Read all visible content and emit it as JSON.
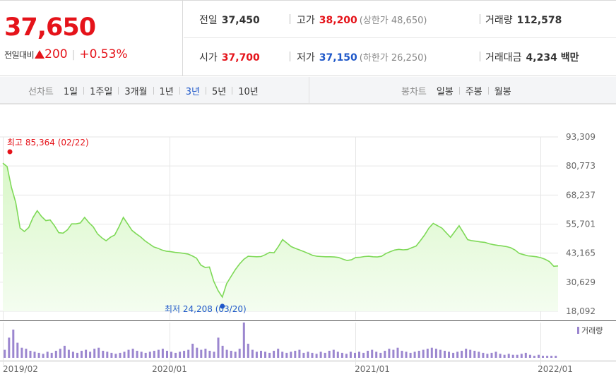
{
  "summary": {
    "price": "37,650",
    "change_label": "전일대비",
    "change_icon": "triangle-up-icon",
    "change_value": "200",
    "change_rate": "+0.53%",
    "prev_close_label": "전일",
    "prev_close": "37,450",
    "high_label": "고가",
    "high": "38,200",
    "upper_limit": "(상한가 48,650)",
    "volume_label": "거래량",
    "volume": "112,578",
    "open_label": "시가",
    "open": "37,700",
    "low_label": "저가",
    "low": "37,150",
    "lower_limit": "(하한가 26,250)",
    "amount_label": "거래대금",
    "amount": "4,234 백만"
  },
  "toolbar": {
    "line_chart_label": "선차트",
    "periods": [
      "1일",
      "1주일",
      "3개월",
      "1년",
      "3년",
      "5년",
      "10년"
    ],
    "active_period": "3년",
    "candle_chart_label": "봉차트",
    "candle_periods": [
      "일봉",
      "주봉",
      "월봉"
    ]
  },
  "colors": {
    "up": "#e5131a",
    "down": "#1f58c9",
    "line": "#7ed957",
    "area_top": "#d9f7c8",
    "area_bottom": "#f4fdf0",
    "volume_bar": "#9b86cf",
    "grid": "#e6e6e6"
  },
  "chart_data": {
    "type": "area",
    "x_ticks": [
      "2019/02",
      "2020/01",
      "2021/01",
      "2022/01"
    ],
    "y_ticks": [
      "93,309",
      "80,773",
      "68,237",
      "55,701",
      "43,165",
      "30,629",
      "18,092"
    ],
    "ylim": [
      18092,
      93309
    ],
    "grid": true,
    "max_annotation": "최고 85,364 (02/22)",
    "min_annotation": "최저 24,208 (03/20)",
    "max_value": 85364,
    "min_value": 24208,
    "volume_label": "거래량",
    "series": [
      {
        "values": [
          82000,
          80500,
          71500,
          65000,
          54000,
          52500,
          54200,
          58500,
          61500,
          59000,
          57200,
          57500,
          55000,
          52000,
          51800,
          53200,
          55800,
          55800,
          56200,
          58600,
          56300,
          54500,
          51500,
          49800,
          48500,
          50000,
          51000,
          54600,
          58600,
          55800,
          53000,
          51500,
          50200,
          48500,
          47200,
          45900,
          45300,
          44500,
          44000,
          43800,
          43500,
          43300,
          43100,
          42800,
          42000,
          41000,
          38000,
          37000,
          37200,
          31000,
          27000,
          24208,
          30000,
          33000,
          36000,
          38500,
          40500,
          41800,
          41700,
          41600,
          41700,
          42500,
          43500,
          43300,
          46000,
          49000,
          47500,
          46000,
          45200,
          44500,
          43800,
          43000,
          42200,
          41800,
          41700,
          41600,
          41600,
          41500,
          41300,
          40600,
          40000,
          40300,
          41300,
          41400,
          41700,
          41800,
          41600,
          41500,
          41800,
          43000,
          43800,
          44500,
          44800,
          44600,
          44700,
          45500,
          46200,
          48500,
          51000,
          54000,
          56000,
          55000,
          54000,
          52000,
          50000,
          52500,
          55000,
          52000,
          49000,
          48500,
          48300,
          48000,
          47800,
          47200,
          46800,
          46500,
          46300,
          46000,
          45500,
          44500,
          43000,
          42500,
          42000,
          41800,
          41600,
          41200,
          40500,
          39500,
          37500,
          37650
        ]
      }
    ],
    "volume": [
      8,
      20,
      28,
      15,
      10,
      9,
      7,
      6,
      5,
      4,
      6,
      5,
      7,
      9,
      12,
      8,
      6,
      5,
      7,
      8,
      6,
      9,
      10,
      7,
      6,
      5,
      4,
      5,
      6,
      8,
      9,
      7,
      6,
      5,
      6,
      7,
      8,
      9,
      7,
      6,
      5,
      6,
      7,
      8,
      14,
      10,
      8,
      9,
      7,
      6,
      20,
      12,
      8,
      7,
      6,
      9,
      35,
      14,
      8,
      6,
      7,
      6,
      5,
      7,
      9,
      6,
      5,
      6,
      7,
      8,
      5,
      6,
      5,
      4,
      6,
      5,
      7,
      8,
      6,
      5,
      4,
      6,
      5,
      6,
      5,
      7,
      8,
      6,
      5,
      7,
      9,
      8,
      10,
      7,
      6,
      5,
      6,
      7,
      8,
      9,
      10,
      9,
      8,
      7,
      6,
      5,
      6,
      7,
      9,
      8,
      7,
      6,
      5,
      4,
      5,
      6,
      4,
      3,
      4,
      3,
      3,
      4,
      5,
      3,
      2,
      3,
      2,
      2,
      2,
      2
    ]
  }
}
